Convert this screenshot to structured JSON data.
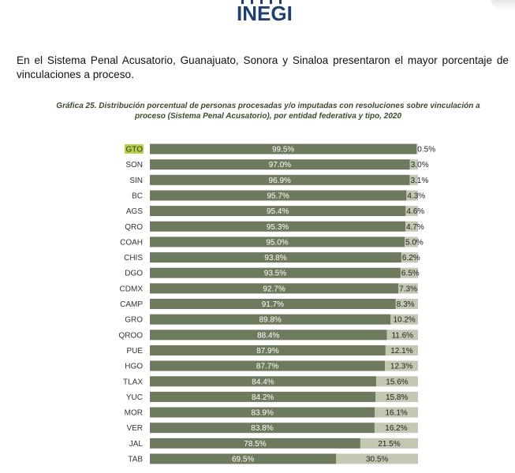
{
  "header": {
    "logo_text": "INEGI"
  },
  "paragraph": "En el Sistema Penal Acusatorio, Guanajuato, Sonora y Sinaloa presentaron el mayor porcentaje de vinculaciones a proceso.",
  "chart_data": {
    "type": "bar",
    "orientation": "horizontal",
    "stacked": true,
    "title": "Gráfica 25. Distribución porcentual de personas procesadas y/o imputadas con resoluciones sobre vinculación a proceso (Sistema Penal Acusatorio), por entidad federativa y tipo, 2020",
    "categories": [
      "GTO",
      "SON",
      "SIN",
      "BC",
      "AGS",
      "QRO",
      "COAH",
      "CHIS",
      "DGO",
      "CDMX",
      "CAMP",
      "GRO",
      "QROO",
      "PUE",
      "HGO",
      "TLAX",
      "YUC",
      "MOR",
      "VER",
      "JAL",
      "TAB"
    ],
    "highlight_category": "GTO",
    "series": [
      {
        "values": [
          99.5,
          97.0,
          96.9,
          95.7,
          95.4,
          95.3,
          95.0,
          93.8,
          93.5,
          92.7,
          91.7,
          89.8,
          88.4,
          87.9,
          87.7,
          84.4,
          84.2,
          83.9,
          83.8,
          78.5,
          69.5
        ],
        "color": "#6e7a5e"
      },
      {
        "values": [
          0.5,
          3.0,
          3.1,
          4.3,
          4.6,
          4.7,
          5.0,
          6.2,
          6.5,
          7.3,
          8.3,
          10.2,
          11.6,
          12.1,
          12.3,
          15.6,
          15.8,
          16.1,
          16.2,
          21.5,
          30.5
        ],
        "color": "#c3c8b2"
      }
    ],
    "xlim": [
      0,
      100
    ],
    "value_format": "one decimal with %",
    "grid": false,
    "legend": "none",
    "colors": {
      "highlight": "#b7d24a",
      "label_text": "#333333",
      "bar_label_on_dark": "#ffffff",
      "bar_label_on_light": "#222222"
    }
  }
}
